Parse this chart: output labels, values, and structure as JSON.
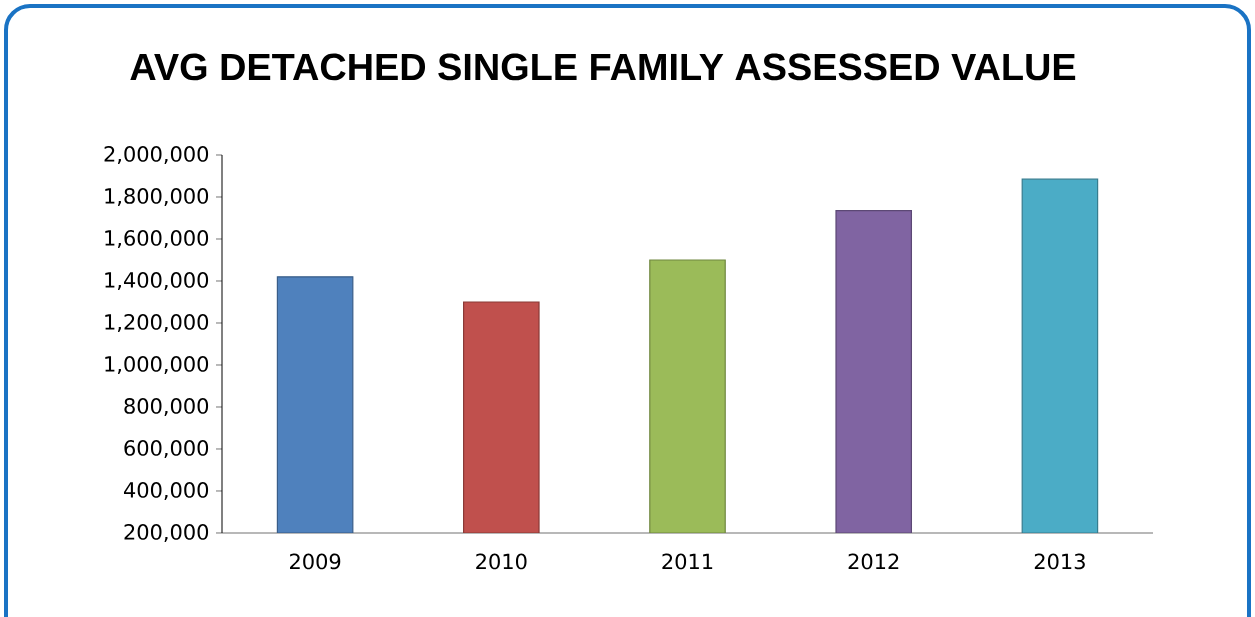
{
  "chart_data": {
    "type": "bar",
    "title": "AVG DETACHED SINGLE FAMILY ASSESSED VALUE",
    "categories": [
      "2009",
      "2010",
      "2011",
      "2012",
      "2013"
    ],
    "values": [
      1420000,
      1300000,
      1500000,
      1735000,
      1885000
    ],
    "colors": [
      "#4f81bd",
      "#c0504d",
      "#9bbb59",
      "#8064a2",
      "#4bacc6"
    ],
    "ylim": [
      200000,
      2000000
    ],
    "yticks": [
      {
        "value": 200000,
        "label": "200,000"
      },
      {
        "value": 400000,
        "label": "400,000"
      },
      {
        "value": 600000,
        "label": "600,000"
      },
      {
        "value": 800000,
        "label": "800,000"
      },
      {
        "value": 1000000,
        "label": "1,000,000"
      },
      {
        "value": 1200000,
        "label": "1,200,000"
      },
      {
        "value": 1400000,
        "label": "1,400,000"
      },
      {
        "value": 1600000,
        "label": "1,600,000"
      },
      {
        "value": 1800000,
        "label": "1,800,000"
      },
      {
        "value": 2000000,
        "label": "2,000,000"
      }
    ]
  }
}
